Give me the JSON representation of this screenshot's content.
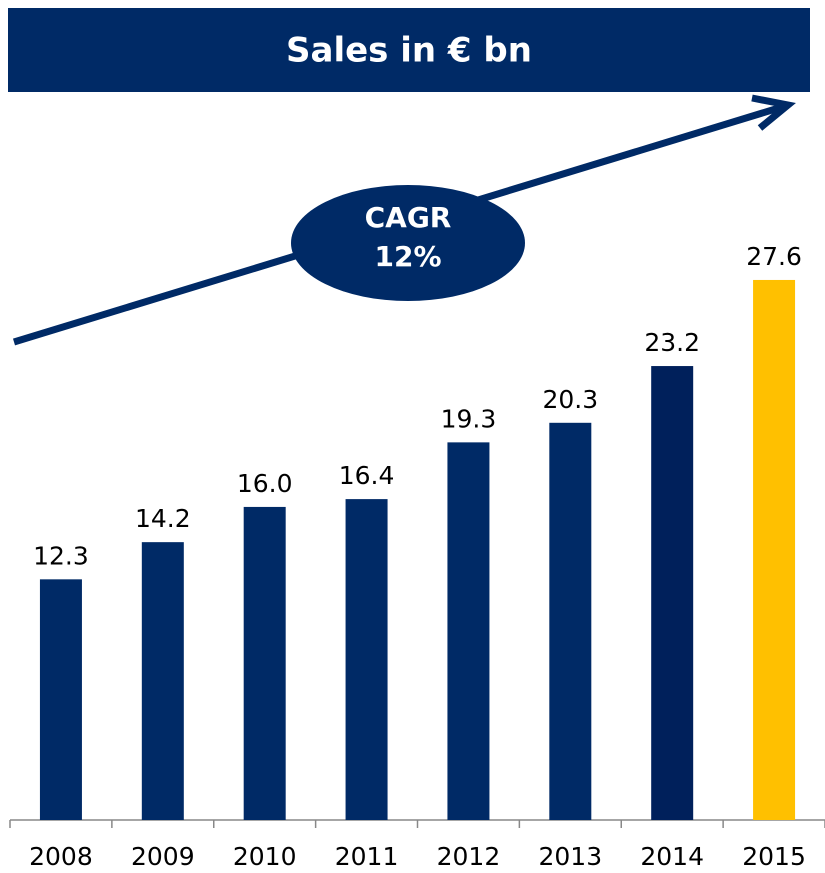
{
  "chart_data": {
    "type": "bar",
    "title": "Sales in € bn",
    "annotation": [
      "CAGR",
      "12%"
    ],
    "categories": [
      "2008",
      "2009",
      "2010",
      "2011",
      "2012",
      "2013",
      "2014",
      "2015"
    ],
    "values": [
      12.3,
      14.2,
      16.0,
      16.4,
      19.3,
      20.3,
      23.2,
      27.6
    ],
    "value_labels": [
      "12.3",
      "14.2",
      "16.0",
      "16.4",
      "19.3",
      "20.3",
      "23.2",
      "27.6"
    ],
    "colors": [
      "#002a66",
      "#002a66",
      "#002a66",
      "#002a66",
      "#002a66",
      "#002a66",
      "#00205b",
      "#ffc000"
    ],
    "ylim": [
      0,
      30
    ]
  }
}
